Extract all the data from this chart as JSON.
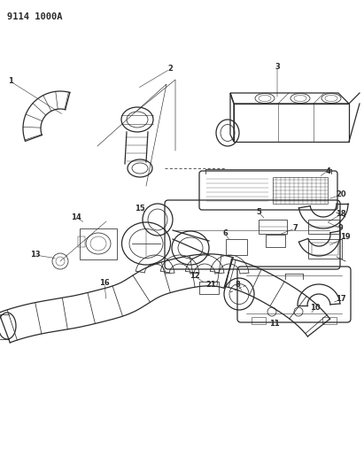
{
  "title_code": "9114 1000A",
  "bg_color": "#ffffff",
  "line_color": "#2a2a2a",
  "fig_width": 4.11,
  "fig_height": 5.33,
  "dpi": 100,
  "label_fs": 6.0,
  "header_fs": 7.5
}
